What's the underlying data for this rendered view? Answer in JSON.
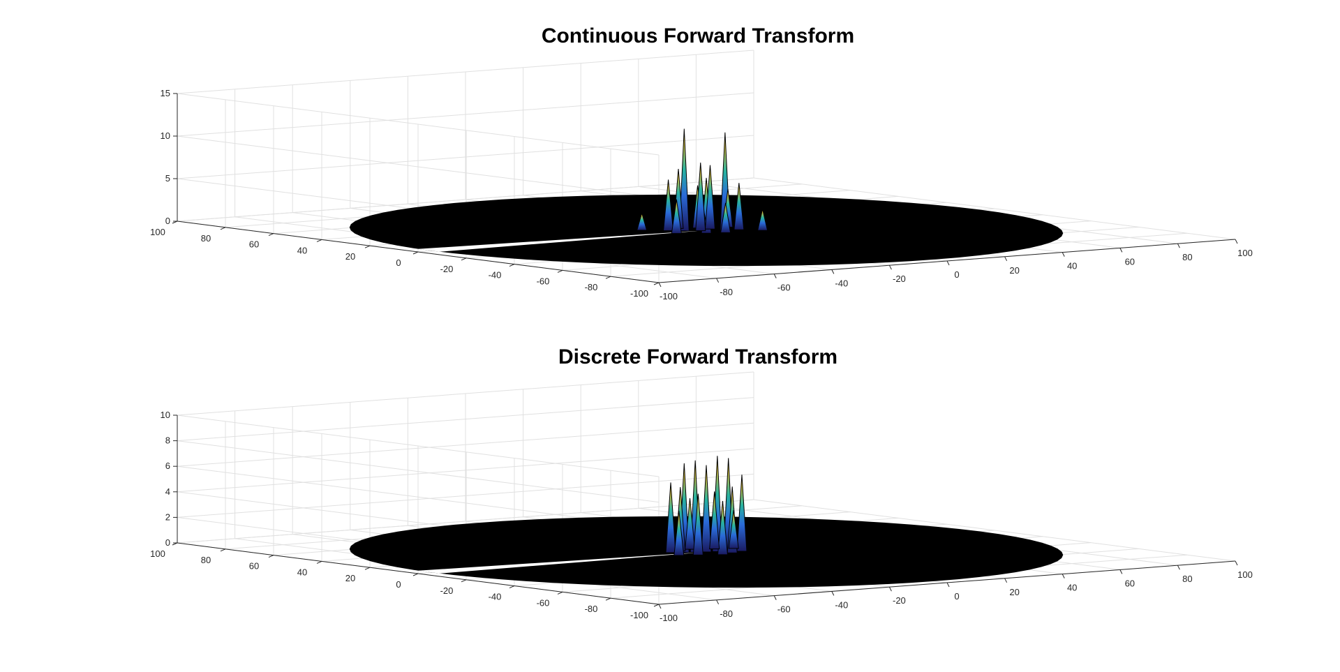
{
  "chart_data": [
    {
      "type": "surface",
      "title": "Continuous Forward Transform",
      "xlabel": "",
      "ylabel": "",
      "zlabel": "",
      "xlim": [
        -100,
        100
      ],
      "ylim": [
        -100,
        100
      ],
      "zlim": [
        0,
        15
      ],
      "x_ticks": [
        "-100",
        "-80",
        "-60",
        "-40",
        "-20",
        "0",
        "20",
        "40",
        "60",
        "80",
        "100"
      ],
      "y_ticks": [
        "100",
        "80",
        "60",
        "40",
        "20",
        "0",
        "-20",
        "-40",
        "-60",
        "-80",
        "-100"
      ],
      "z_ticks": [
        "0",
        "5",
        "10",
        "15"
      ],
      "grid": true,
      "colormap": "parula",
      "peak_z": 12,
      "spikes": [
        {
          "x": -6,
          "y": 2,
          "z": 12
        },
        {
          "x": 4,
          "y": -3,
          "z": 11.5
        },
        {
          "x": -9,
          "y": 5,
          "z": 6
        },
        {
          "x": 8,
          "y": -4,
          "z": 5.5
        },
        {
          "x": -3,
          "y": 8,
          "z": 7
        },
        {
          "x": 2,
          "y": 6,
          "z": 5
        },
        {
          "x": -12,
          "y": -2,
          "z": 4
        },
        {
          "x": 10,
          "y": 3,
          "z": 4.5
        },
        {
          "x": 0,
          "y": -8,
          "z": 3.5
        },
        {
          "x": -5,
          "y": -6,
          "z": 6.5
        },
        {
          "x": 6,
          "y": 9,
          "z": 3
        },
        {
          "x": 12,
          "y": -9,
          "z": 2.5
        },
        {
          "x": -14,
          "y": 10,
          "z": 2
        },
        {
          "x": -2,
          "y": 0,
          "z": 8
        },
        {
          "x": 3,
          "y": 2,
          "z": 7.5
        }
      ]
    },
    {
      "type": "surface",
      "title": "Discrete Forward Transform",
      "xlabel": "",
      "ylabel": "",
      "zlabel": "",
      "xlim": [
        -100,
        100
      ],
      "ylim": [
        -100,
        100
      ],
      "zlim": [
        0,
        10
      ],
      "x_ticks": [
        "-100",
        "-80",
        "-60",
        "-40",
        "-20",
        "0",
        "20",
        "40",
        "60",
        "80",
        "100"
      ],
      "y_ticks": [
        "100",
        "80",
        "60",
        "40",
        "20",
        "0",
        "-20",
        "-40",
        "-60",
        "-80",
        "-100"
      ],
      "z_ticks": [
        "0",
        "2",
        "4",
        "6",
        "8",
        "10"
      ],
      "grid": true,
      "colormap": "parula",
      "peak_z": 7.5,
      "spikes": [
        {
          "x": -6,
          "y": 2,
          "z": 7
        },
        {
          "x": -3,
          "y": 1,
          "z": 7.2
        },
        {
          "x": 0,
          "y": 0,
          "z": 6.8
        },
        {
          "x": 3,
          "y": -1,
          "z": 7.5
        },
        {
          "x": 6,
          "y": -2,
          "z": 7.3
        },
        {
          "x": -9,
          "y": 4,
          "z": 5.5
        },
        {
          "x": 9,
          "y": -4,
          "z": 6
        },
        {
          "x": -4,
          "y": 6,
          "z": 5
        },
        {
          "x": 4,
          "y": -6,
          "z": 5.2
        },
        {
          "x": -12,
          "y": -3,
          "z": 3.5
        },
        {
          "x": 12,
          "y": 3,
          "z": 3
        },
        {
          "x": 1,
          "y": 8,
          "z": 4
        },
        {
          "x": -1,
          "y": -8,
          "z": 4.2
        },
        {
          "x": -7,
          "y": -5,
          "z": 4.8
        },
        {
          "x": 7,
          "y": 5,
          "z": 4.5
        }
      ]
    }
  ]
}
